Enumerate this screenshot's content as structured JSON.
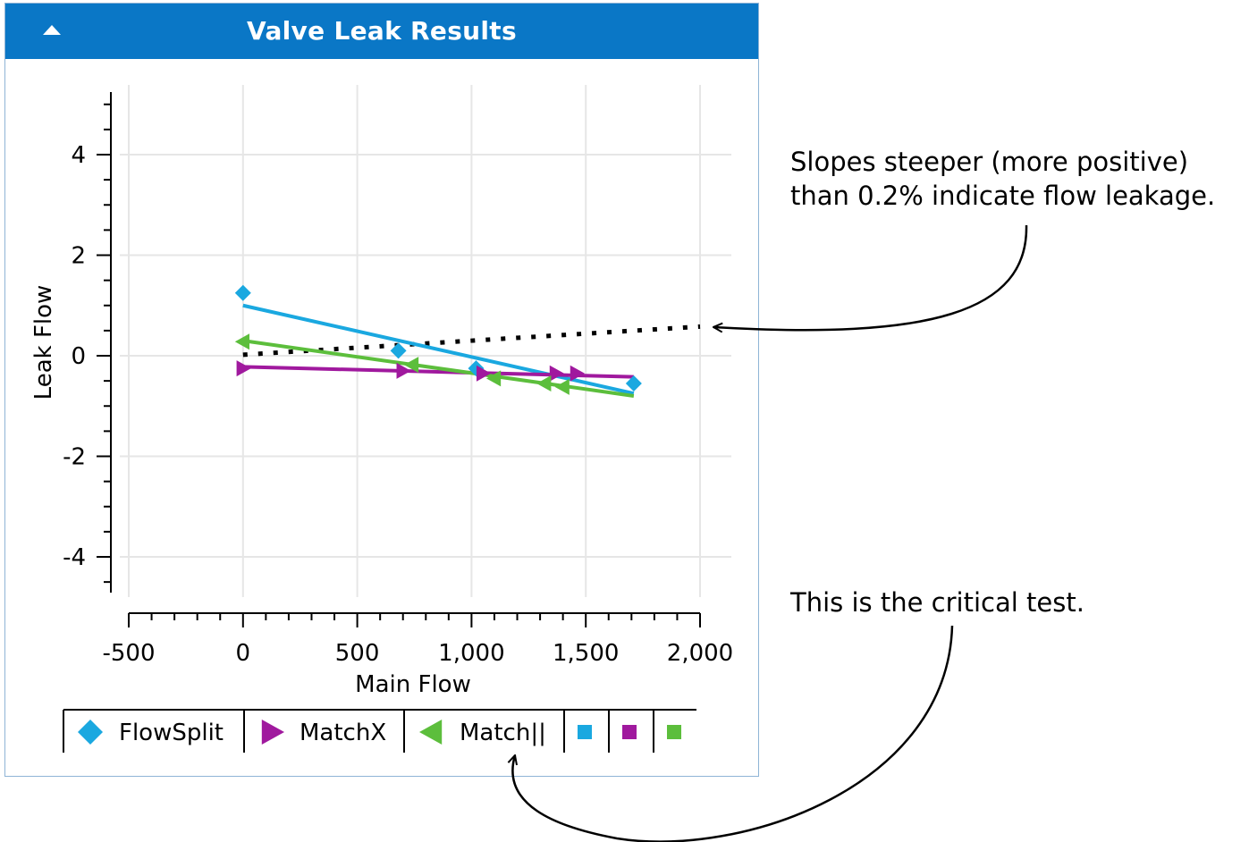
{
  "panel": {
    "title": "Valve Leak Results",
    "collapse_icon": "triangle-up-icon"
  },
  "colors": {
    "header": "#0a77c6",
    "flowsplit": "#1aa8e0",
    "matchx": "#a0199e",
    "matchpar": "#5cbe3c",
    "grid": "#e6e6e6"
  },
  "chart_data": {
    "type": "scatter",
    "xlabel": "Main Flow",
    "ylabel": "Leak Flow",
    "xlim": [
      -500,
      2000
    ],
    "ylim": [
      -4.7,
      5.2
    ],
    "xticks": [
      {
        "value": -500,
        "label": "-500"
      },
      {
        "value": 0,
        "label": "0"
      },
      {
        "value": 500,
        "label": "500"
      },
      {
        "value": 1000,
        "label": "1,000"
      },
      {
        "value": 1500,
        "label": "1,500"
      },
      {
        "value": 2000,
        "label": "2,000"
      }
    ],
    "yticks": [
      {
        "value": 4,
        "label": "4"
      },
      {
        "value": 2,
        "label": "2"
      },
      {
        "value": 0,
        "label": "0"
      },
      {
        "value": -2,
        "label": "-2"
      },
      {
        "value": -4,
        "label": "-4"
      }
    ],
    "grid": true,
    "legend_position": "bottom",
    "series": [
      {
        "name": "FlowSplit",
        "color": "#1aa8e0",
        "marker": "diamond",
        "points": [
          [
            0,
            1.25
          ],
          [
            680,
            0.1
          ],
          [
            1020,
            -0.25
          ],
          [
            1710,
            -0.55
          ]
        ],
        "fit": [
          [
            0,
            1.0
          ],
          [
            1710,
            -0.75
          ]
        ]
      },
      {
        "name": "MatchX",
        "color": "#a0199e",
        "marker": "triangle-right",
        "points": [
          [
            0,
            -0.25
          ],
          [
            700,
            -0.3
          ],
          [
            1050,
            -0.35
          ],
          [
            1370,
            -0.35
          ],
          [
            1460,
            -0.35
          ]
        ],
        "fit": [
          [
            0,
            -0.22
          ],
          [
            1710,
            -0.42
          ]
        ]
      },
      {
        "name": "Match||",
        "color": "#5cbe3c",
        "marker": "triangle-left",
        "points": [
          [
            0,
            0.28
          ],
          [
            740,
            -0.18
          ],
          [
            1100,
            -0.45
          ],
          [
            1320,
            -0.55
          ],
          [
            1400,
            -0.62
          ]
        ],
        "fit": [
          [
            0,
            0.3
          ],
          [
            1710,
            -0.8
          ]
        ]
      }
    ],
    "reference_line": {
      "style": "dotted",
      "color": "#000000",
      "points": [
        [
          0,
          0.02
        ],
        [
          2000,
          0.58
        ]
      ]
    },
    "legend": [
      {
        "label": "FlowSplit",
        "color": "#1aa8e0",
        "marker": "diamond"
      },
      {
        "label": "MatchX",
        "color": "#a0199e",
        "marker": "triangle-right"
      },
      {
        "label": "Match||",
        "color": "#5cbe3c",
        "marker": "triangle-left"
      },
      {
        "label": "",
        "color": "#1aa8e0",
        "marker": "square"
      },
      {
        "label": "",
        "color": "#a0199e",
        "marker": "square"
      },
      {
        "label": "",
        "color": "#5cbe3c",
        "marker": "square"
      }
    ]
  },
  "annotations": {
    "slope_note_line1": "Slopes steeper (more positive)",
    "slope_note_line2": "than 0.2% indicate flow leakage.",
    "critical_note": "This is the critical test."
  }
}
